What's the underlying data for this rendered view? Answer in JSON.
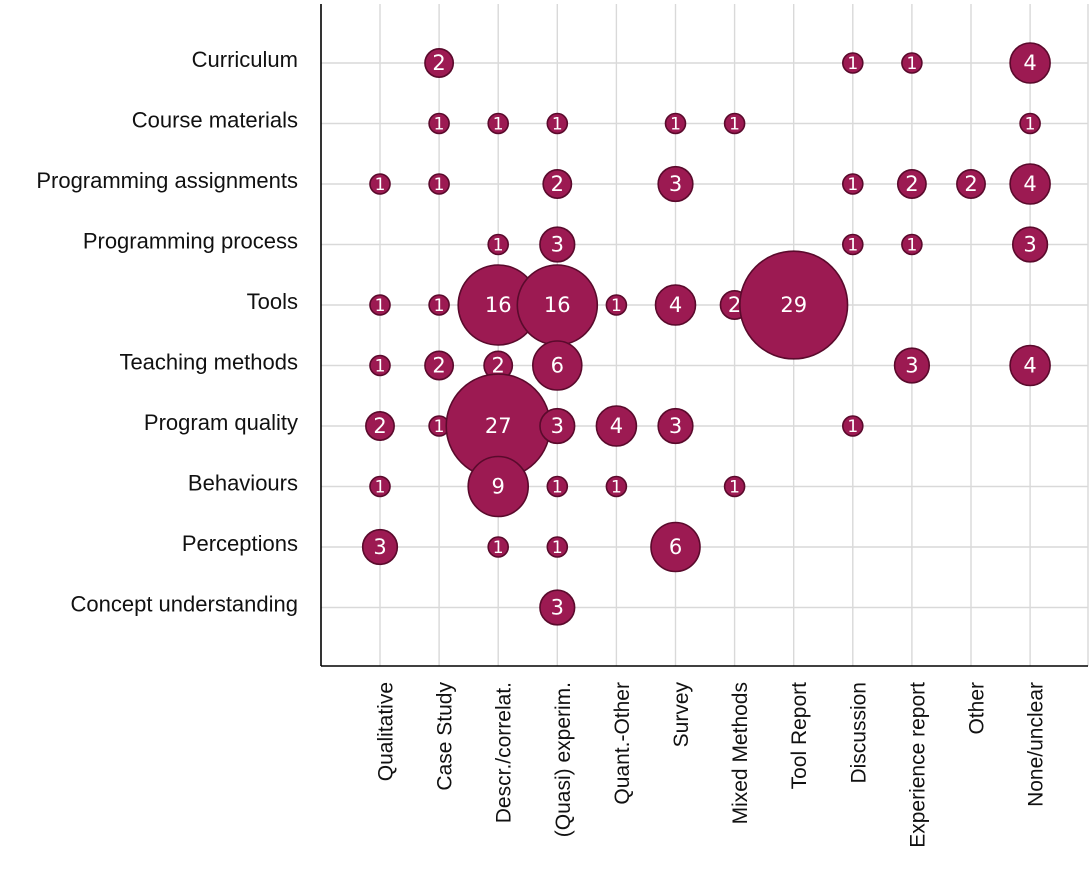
{
  "chart_data": {
    "type": "scatter",
    "subtype": "bubble-matrix",
    "title": "",
    "xlabel": "",
    "ylabel": "",
    "x_categories": [
      "Qualitative",
      "Case Study",
      "Descr./correlat.",
      "(Quasi) experim.",
      "Quant.-Other",
      "Survey",
      "Mixed Methods",
      "Tool Report",
      "Discussion",
      "Experience report",
      "Other",
      "None/unclear"
    ],
    "y_categories": [
      "Curriculum",
      "Course materials",
      "Programming assignments",
      "Programming process",
      "Tools",
      "Teaching methods",
      "Program quality",
      "Behaviours",
      "Perceptions",
      "Concept understanding"
    ],
    "points": [
      {
        "x": "Case Study",
        "y": "Curriculum",
        "value": 2
      },
      {
        "x": "Discussion",
        "y": "Curriculum",
        "value": 1
      },
      {
        "x": "Experience report",
        "y": "Curriculum",
        "value": 1
      },
      {
        "x": "None/unclear",
        "y": "Curriculum",
        "value": 4
      },
      {
        "x": "Case Study",
        "y": "Course materials",
        "value": 1
      },
      {
        "x": "Descr./correlat.",
        "y": "Course materials",
        "value": 1
      },
      {
        "x": "(Quasi) experim.",
        "y": "Course materials",
        "value": 1
      },
      {
        "x": "Survey",
        "y": "Course materials",
        "value": 1
      },
      {
        "x": "Mixed Methods",
        "y": "Course materials",
        "value": 1
      },
      {
        "x": "None/unclear",
        "y": "Course materials",
        "value": 1
      },
      {
        "x": "Qualitative",
        "y": "Programming assignments",
        "value": 1
      },
      {
        "x": "Case Study",
        "y": "Programming assignments",
        "value": 1
      },
      {
        "x": "(Quasi) experim.",
        "y": "Programming assignments",
        "value": 2
      },
      {
        "x": "Survey",
        "y": "Programming assignments",
        "value": 3
      },
      {
        "x": "Discussion",
        "y": "Programming assignments",
        "value": 1
      },
      {
        "x": "Experience report",
        "y": "Programming assignments",
        "value": 2
      },
      {
        "x": "Other",
        "y": "Programming assignments",
        "value": 2
      },
      {
        "x": "None/unclear",
        "y": "Programming assignments",
        "value": 4
      },
      {
        "x": "Descr./correlat.",
        "y": "Programming process",
        "value": 1
      },
      {
        "x": "(Quasi) experim.",
        "y": "Programming process",
        "value": 3
      },
      {
        "x": "Discussion",
        "y": "Programming process",
        "value": 1
      },
      {
        "x": "Experience report",
        "y": "Programming process",
        "value": 1
      },
      {
        "x": "None/unclear",
        "y": "Programming process",
        "value": 3
      },
      {
        "x": "Qualitative",
        "y": "Tools",
        "value": 1
      },
      {
        "x": "Case Study",
        "y": "Tools",
        "value": 1
      },
      {
        "x": "Descr./correlat.",
        "y": "Tools",
        "value": 16
      },
      {
        "x": "(Quasi) experim.",
        "y": "Tools",
        "value": 16
      },
      {
        "x": "Quant.-Other",
        "y": "Tools",
        "value": 1
      },
      {
        "x": "Survey",
        "y": "Tools",
        "value": 4
      },
      {
        "x": "Mixed Methods",
        "y": "Tools",
        "value": 2
      },
      {
        "x": "Tool Report",
        "y": "Tools",
        "value": 29
      },
      {
        "x": "Qualitative",
        "y": "Teaching methods",
        "value": 1
      },
      {
        "x": "Case Study",
        "y": "Teaching methods",
        "value": 2
      },
      {
        "x": "Descr./correlat.",
        "y": "Teaching methods",
        "value": 2
      },
      {
        "x": "(Quasi) experim.",
        "y": "Teaching methods",
        "value": 6
      },
      {
        "x": "Experience report",
        "y": "Teaching methods",
        "value": 3
      },
      {
        "x": "None/unclear",
        "y": "Teaching methods",
        "value": 4
      },
      {
        "x": "Qualitative",
        "y": "Program quality",
        "value": 2
      },
      {
        "x": "Case Study",
        "y": "Program quality",
        "value": 1
      },
      {
        "x": "Descr./correlat.",
        "y": "Program quality",
        "value": 27
      },
      {
        "x": "(Quasi) experim.",
        "y": "Program quality",
        "value": 3
      },
      {
        "x": "Quant.-Other",
        "y": "Program quality",
        "value": 4
      },
      {
        "x": "Survey",
        "y": "Program quality",
        "value": 3
      },
      {
        "x": "Discussion",
        "y": "Program quality",
        "value": 1
      },
      {
        "x": "Qualitative",
        "y": "Behaviours",
        "value": 1
      },
      {
        "x": "Descr./correlat.",
        "y": "Behaviours",
        "value": 9
      },
      {
        "x": "(Quasi) experim.",
        "y": "Behaviours",
        "value": 1
      },
      {
        "x": "Quant.-Other",
        "y": "Behaviours",
        "value": 1
      },
      {
        "x": "Mixed Methods",
        "y": "Behaviours",
        "value": 1
      },
      {
        "x": "Qualitative",
        "y": "Perceptions",
        "value": 3
      },
      {
        "x": "Descr./correlat.",
        "y": "Perceptions",
        "value": 1
      },
      {
        "x": "(Quasi) experim.",
        "y": "Perceptions",
        "value": 1
      },
      {
        "x": "Survey",
        "y": "Perceptions",
        "value": 6
      },
      {
        "x": "(Quasi) experim.",
        "y": "Concept understanding",
        "value": 3
      }
    ],
    "grid": true,
    "colors": {
      "bubble_fill": "#9c1a52",
      "bubble_stroke": "#5a0a2c",
      "label": "#ffffff",
      "grid": "#d9d9d9",
      "axis": "#000000"
    }
  }
}
